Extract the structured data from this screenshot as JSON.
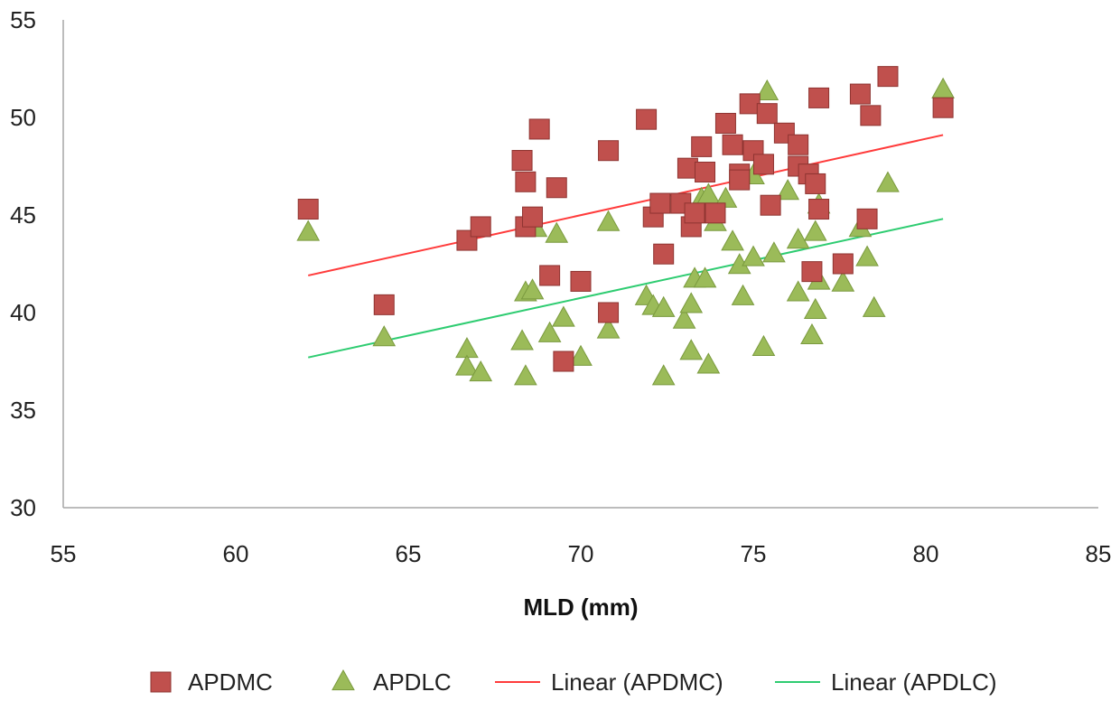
{
  "chart_data": {
    "type": "scatter",
    "title": "",
    "xlabel": "MLD (mm)",
    "ylabel": "",
    "xlim": [
      55,
      85
    ],
    "ylim": [
      30,
      55
    ],
    "xticks": [
      "55",
      "60",
      "65",
      "70",
      "75",
      "80",
      "85"
    ],
    "yticks": [
      "30",
      "35",
      "40",
      "45",
      "50",
      "55"
    ],
    "grid": false,
    "legend_position": "bottom",
    "series": [
      {
        "name": "APDMC",
        "marker": "square",
        "color": "#C0504D",
        "points": [
          [
            62.1,
            45.3
          ],
          [
            64.3,
            40.4
          ],
          [
            66.7,
            43.7
          ],
          [
            67.1,
            44.4
          ],
          [
            68.3,
            47.8
          ],
          [
            68.4,
            46.7
          ],
          [
            68.4,
            44.4
          ],
          [
            68.6,
            44.9
          ],
          [
            68.8,
            49.4
          ],
          [
            69.1,
            41.9
          ],
          [
            69.3,
            46.4
          ],
          [
            69.5,
            37.5
          ],
          [
            70.0,
            41.6
          ],
          [
            70.8,
            40.0
          ],
          [
            70.8,
            48.3
          ],
          [
            71.9,
            49.9
          ],
          [
            72.1,
            44.9
          ],
          [
            72.3,
            45.6
          ],
          [
            72.4,
            43.0
          ],
          [
            72.9,
            45.6
          ],
          [
            73.1,
            47.4
          ],
          [
            73.2,
            44.4
          ],
          [
            73.3,
            45.1
          ],
          [
            73.5,
            48.5
          ],
          [
            73.6,
            47.2
          ],
          [
            73.9,
            45.1
          ],
          [
            74.2,
            49.7
          ],
          [
            74.4,
            48.6
          ],
          [
            74.6,
            47.1
          ],
          [
            74.6,
            46.8
          ],
          [
            74.9,
            50.7
          ],
          [
            75.0,
            48.3
          ],
          [
            75.3,
            47.6
          ],
          [
            75.4,
            50.2
          ],
          [
            75.5,
            45.5
          ],
          [
            75.9,
            49.2
          ],
          [
            76.3,
            48.6
          ],
          [
            76.3,
            47.5
          ],
          [
            76.6,
            47.1
          ],
          [
            76.7,
            42.1
          ],
          [
            76.8,
            46.6
          ],
          [
            76.9,
            45.3
          ],
          [
            76.9,
            51.0
          ],
          [
            77.6,
            42.5
          ],
          [
            78.1,
            51.2
          ],
          [
            78.3,
            44.8
          ],
          [
            78.4,
            50.1
          ],
          [
            78.9,
            52.1
          ],
          [
            80.5,
            50.5
          ]
        ]
      },
      {
        "name": "APDLC",
        "marker": "triangle",
        "color": "#9BBB59",
        "points": [
          [
            62.1,
            44.1
          ],
          [
            64.3,
            38.7
          ],
          [
            66.7,
            38.1
          ],
          [
            66.7,
            37.2
          ],
          [
            67.1,
            36.9
          ],
          [
            68.3,
            38.5
          ],
          [
            68.4,
            36.7
          ],
          [
            68.4,
            41.0
          ],
          [
            68.6,
            41.1
          ],
          [
            68.7,
            44.3
          ],
          [
            69.1,
            38.9
          ],
          [
            69.3,
            44.0
          ],
          [
            69.5,
            39.7
          ],
          [
            70.0,
            37.7
          ],
          [
            70.8,
            39.1
          ],
          [
            70.8,
            44.6
          ],
          [
            71.9,
            40.8
          ],
          [
            72.1,
            40.3
          ],
          [
            72.4,
            40.2
          ],
          [
            72.4,
            36.7
          ],
          [
            73.0,
            39.6
          ],
          [
            73.2,
            40.4
          ],
          [
            73.2,
            38.0
          ],
          [
            73.3,
            41.7
          ],
          [
            73.5,
            45.8
          ],
          [
            73.6,
            41.7
          ],
          [
            73.7,
            46.0
          ],
          [
            73.7,
            37.3
          ],
          [
            73.9,
            44.6
          ],
          [
            74.2,
            45.8
          ],
          [
            74.4,
            43.6
          ],
          [
            74.6,
            42.4
          ],
          [
            74.7,
            40.8
          ],
          [
            75.0,
            47.0
          ],
          [
            75.0,
            42.8
          ],
          [
            75.3,
            38.2
          ],
          [
            75.4,
            51.3
          ],
          [
            75.6,
            43.0
          ],
          [
            76.0,
            46.2
          ],
          [
            76.3,
            41.0
          ],
          [
            76.3,
            43.7
          ],
          [
            76.7,
            38.8
          ],
          [
            76.8,
            40.1
          ],
          [
            76.8,
            44.1
          ],
          [
            76.9,
            41.6
          ],
          [
            76.9,
            45.5
          ],
          [
            77.6,
            41.5
          ],
          [
            78.1,
            44.3
          ],
          [
            78.3,
            42.8
          ],
          [
            78.5,
            40.2
          ],
          [
            78.9,
            46.6
          ],
          [
            80.5,
            51.4
          ]
        ]
      },
      {
        "name": "Linear (APDMC)",
        "type": "trendline",
        "color": "#FF3B3B",
        "x_range": [
          62.1,
          80.5
        ],
        "y_range": [
          41.9,
          49.1
        ]
      },
      {
        "name": "Linear (APDLC)",
        "type": "trendline",
        "color": "#2ECC71",
        "x_range": [
          62.1,
          80.5
        ],
        "y_range": [
          37.7,
          44.8
        ]
      }
    ]
  }
}
